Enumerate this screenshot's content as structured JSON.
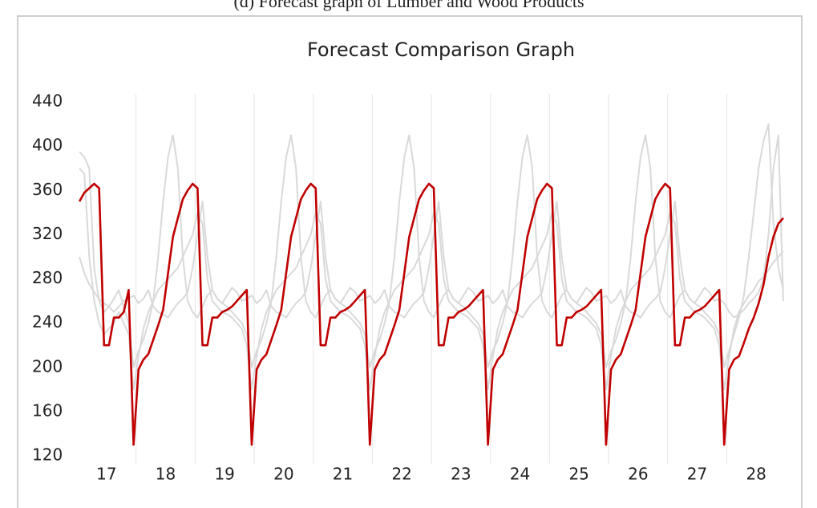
{
  "caption": "(d) Forecast graph of Lumber and Wood Products",
  "chart_data": {
    "type": "line",
    "title": "Forecast Comparison Graph",
    "x": [
      0,
      1,
      2,
      3,
      4,
      5,
      6,
      7,
      8,
      9,
      10,
      11,
      12,
      13,
      14,
      15,
      16,
      17,
      18,
      19,
      20,
      21,
      22,
      23,
      24,
      25,
      26,
      27,
      28,
      29,
      30,
      31,
      32,
      33,
      34,
      35,
      36,
      37,
      38,
      39,
      40,
      41,
      42,
      43,
      44,
      45,
      46,
      47,
      48,
      49,
      50,
      51,
      52,
      53,
      54,
      55,
      56,
      57,
      58,
      59,
      60,
      61,
      62,
      63,
      64,
      65,
      66,
      67,
      68,
      69,
      70,
      71,
      72,
      73,
      74,
      75,
      76,
      77,
      78,
      79,
      80,
      81,
      82,
      83,
      84,
      85,
      86,
      87,
      88,
      89,
      90,
      91,
      92,
      93,
      94,
      95,
      96,
      97,
      98,
      99,
      100,
      101,
      102,
      103,
      104,
      105,
      106,
      107,
      108,
      109,
      110,
      111,
      112,
      113,
      114,
      115,
      116,
      117,
      118,
      119,
      120,
      121,
      122,
      123,
      124,
      125,
      126,
      127,
      128,
      129,
      130,
      131,
      132,
      133,
      134,
      135,
      136,
      137,
      138,
      139,
      140,
      141,
      142,
      143
    ],
    "xlim": [
      -0.5,
      143.5
    ],
    "xticks": [
      {
        "value": 5.5,
        "label": "17"
      },
      {
        "value": 17.5,
        "label": "18"
      },
      {
        "value": 29.5,
        "label": "19"
      },
      {
        "value": 41.5,
        "label": "20"
      },
      {
        "value": 53.5,
        "label": "21"
      },
      {
        "value": 65.5,
        "label": "22"
      },
      {
        "value": 77.5,
        "label": "23"
      },
      {
        "value": 89.5,
        "label": "24"
      },
      {
        "value": 101.5,
        "label": "25"
      },
      {
        "value": 113.5,
        "label": "26"
      },
      {
        "value": 125.5,
        "label": "27"
      },
      {
        "value": 137.5,
        "label": "28"
      }
    ],
    "ylim": [
      120,
      440
    ],
    "yticks": [
      120,
      160,
      200,
      240,
      280,
      320,
      360,
      400,
      440
    ],
    "grid": "x",
    "series": [
      {
        "color": "#d9d9d9",
        "values": [
          300,
          285,
          275,
          268,
          262,
          258,
          255,
          250,
          255,
          260,
          262,
          265,
          258,
          262,
          270,
          255,
          250,
          248,
          245,
          252,
          258,
          262,
          268,
          290,
          320,
          350,
          300,
          270,
          262,
          258,
          265,
          272,
          268,
          260,
          262,
          265,
          258,
          262,
          270,
          255,
          250,
          248,
          245,
          252,
          258,
          262,
          268,
          290,
          320,
          350,
          300,
          270,
          262,
          258,
          265,
          272,
          268,
          260,
          262,
          265,
          258,
          262,
          270,
          255,
          250,
          248,
          245,
          252,
          258,
          262,
          268,
          290,
          320,
          350,
          300,
          270,
          262,
          258,
          265,
          272,
          268,
          260,
          262,
          265,
          258,
          262,
          270,
          255,
          250,
          248,
          245,
          252,
          258,
          262,
          268,
          290,
          320,
          350,
          300,
          270,
          262,
          258,
          265,
          272,
          268,
          260,
          262,
          265,
          258,
          262,
          270,
          255,
          250,
          248,
          245,
          252,
          258,
          262,
          268,
          290,
          320,
          350,
          300,
          270,
          262,
          258,
          265,
          272,
          268,
          260,
          262,
          258,
          250,
          245,
          248,
          252,
          258,
          262,
          268,
          280,
          320,
          380,
          410,
          260
        ]
      },
      {
        "color": "#d9d9d9",
        "values": [
          395,
          390,
          380,
          290,
          260,
          250,
          255,
          262,
          270,
          255,
          240,
          200,
          215,
          225,
          240,
          260,
          300,
          350,
          390,
          410,
          380,
          300,
          260,
          250,
          245,
          255,
          265,
          270,
          262,
          258,
          255,
          250,
          245,
          240,
          230,
          200,
          215,
          225,
          240,
          260,
          300,
          350,
          390,
          410,
          380,
          300,
          260,
          250,
          245,
          255,
          265,
          270,
          262,
          258,
          255,
          250,
          245,
          240,
          230,
          200,
          215,
          225,
          240,
          260,
          300,
          350,
          390,
          410,
          380,
          300,
          260,
          250,
          245,
          255,
          265,
          270,
          262,
          258,
          255,
          250,
          245,
          240,
          230,
          200,
          215,
          225,
          240,
          260,
          300,
          350,
          390,
          410,
          380,
          300,
          260,
          250,
          245,
          255,
          265,
          270,
          262,
          258,
          255,
          250,
          245,
          240,
          230,
          200,
          215,
          225,
          240,
          260,
          300,
          350,
          390,
          410,
          380,
          300,
          260,
          250,
          245,
          255,
          265,
          270,
          262,
          258,
          255,
          250,
          245,
          240,
          230,
          200,
          215,
          230,
          245,
          265,
          300,
          340,
          380,
          405,
          420,
          330,
          290,
          270
        ]
      },
      {
        "color": "#d9d9d9",
        "values": [
          380,
          375,
          300,
          260,
          240,
          230,
          235,
          240,
          250,
          240,
          230,
          180,
          210,
          235,
          250,
          260,
          270,
          275,
          280,
          285,
          290,
          300,
          310,
          320,
          340,
          330,
          280,
          260,
          255,
          250,
          248,
          245,
          240,
          235,
          220,
          180,
          210,
          235,
          250,
          260,
          270,
          275,
          280,
          285,
          290,
          300,
          310,
          320,
          340,
          330,
          280,
          260,
          255,
          250,
          248,
          245,
          240,
          235,
          220,
          180,
          210,
          235,
          250,
          260,
          270,
          275,
          280,
          285,
          290,
          300,
          310,
          320,
          340,
          330,
          280,
          260,
          255,
          250,
          248,
          245,
          240,
          235,
          220,
          180,
          210,
          235,
          250,
          260,
          270,
          275,
          280,
          285,
          290,
          300,
          310,
          320,
          340,
          330,
          280,
          260,
          255,
          250,
          248,
          245,
          240,
          235,
          220,
          180,
          210,
          235,
          250,
          260,
          270,
          275,
          280,
          285,
          290,
          300,
          310,
          320,
          340,
          330,
          280,
          260,
          255,
          250,
          248,
          245,
          240,
          235,
          220,
          180,
          210,
          235,
          250,
          258,
          265,
          270,
          278,
          282,
          288,
          295,
          300,
          305
        ]
      },
      {
        "color": "#c00000",
        "values": [
          350,
          358,
          362,
          366,
          362,
          220,
          220,
          245,
          245,
          250,
          270,
          130,
          198,
          207,
          212,
          225,
          238,
          252,
          285,
          318,
          335,
          352,
          360,
          366,
          362,
          220,
          220,
          245,
          245,
          250,
          252,
          255,
          260,
          265,
          270,
          130,
          198,
          207,
          212,
          225,
          238,
          252,
          285,
          318,
          335,
          352,
          360,
          366,
          362,
          220,
          220,
          245,
          245,
          250,
          252,
          255,
          260,
          265,
          270,
          130,
          198,
          207,
          212,
          225,
          238,
          252,
          285,
          318,
          335,
          352,
          360,
          366,
          362,
          220,
          220,
          245,
          245,
          250,
          252,
          255,
          260,
          265,
          270,
          130,
          198,
          207,
          212,
          225,
          238,
          252,
          285,
          318,
          335,
          352,
          360,
          366,
          362,
          220,
          220,
          245,
          245,
          250,
          252,
          255,
          260,
          265,
          270,
          130,
          198,
          207,
          212,
          225,
          238,
          252,
          285,
          318,
          335,
          352,
          360,
          366,
          362,
          220,
          220,
          245,
          245,
          250,
          252,
          255,
          260,
          265,
          270,
          130,
          198,
          207,
          210,
          222,
          235,
          245,
          258,
          275,
          300,
          318,
          330,
          335
        ]
      }
    ]
  }
}
